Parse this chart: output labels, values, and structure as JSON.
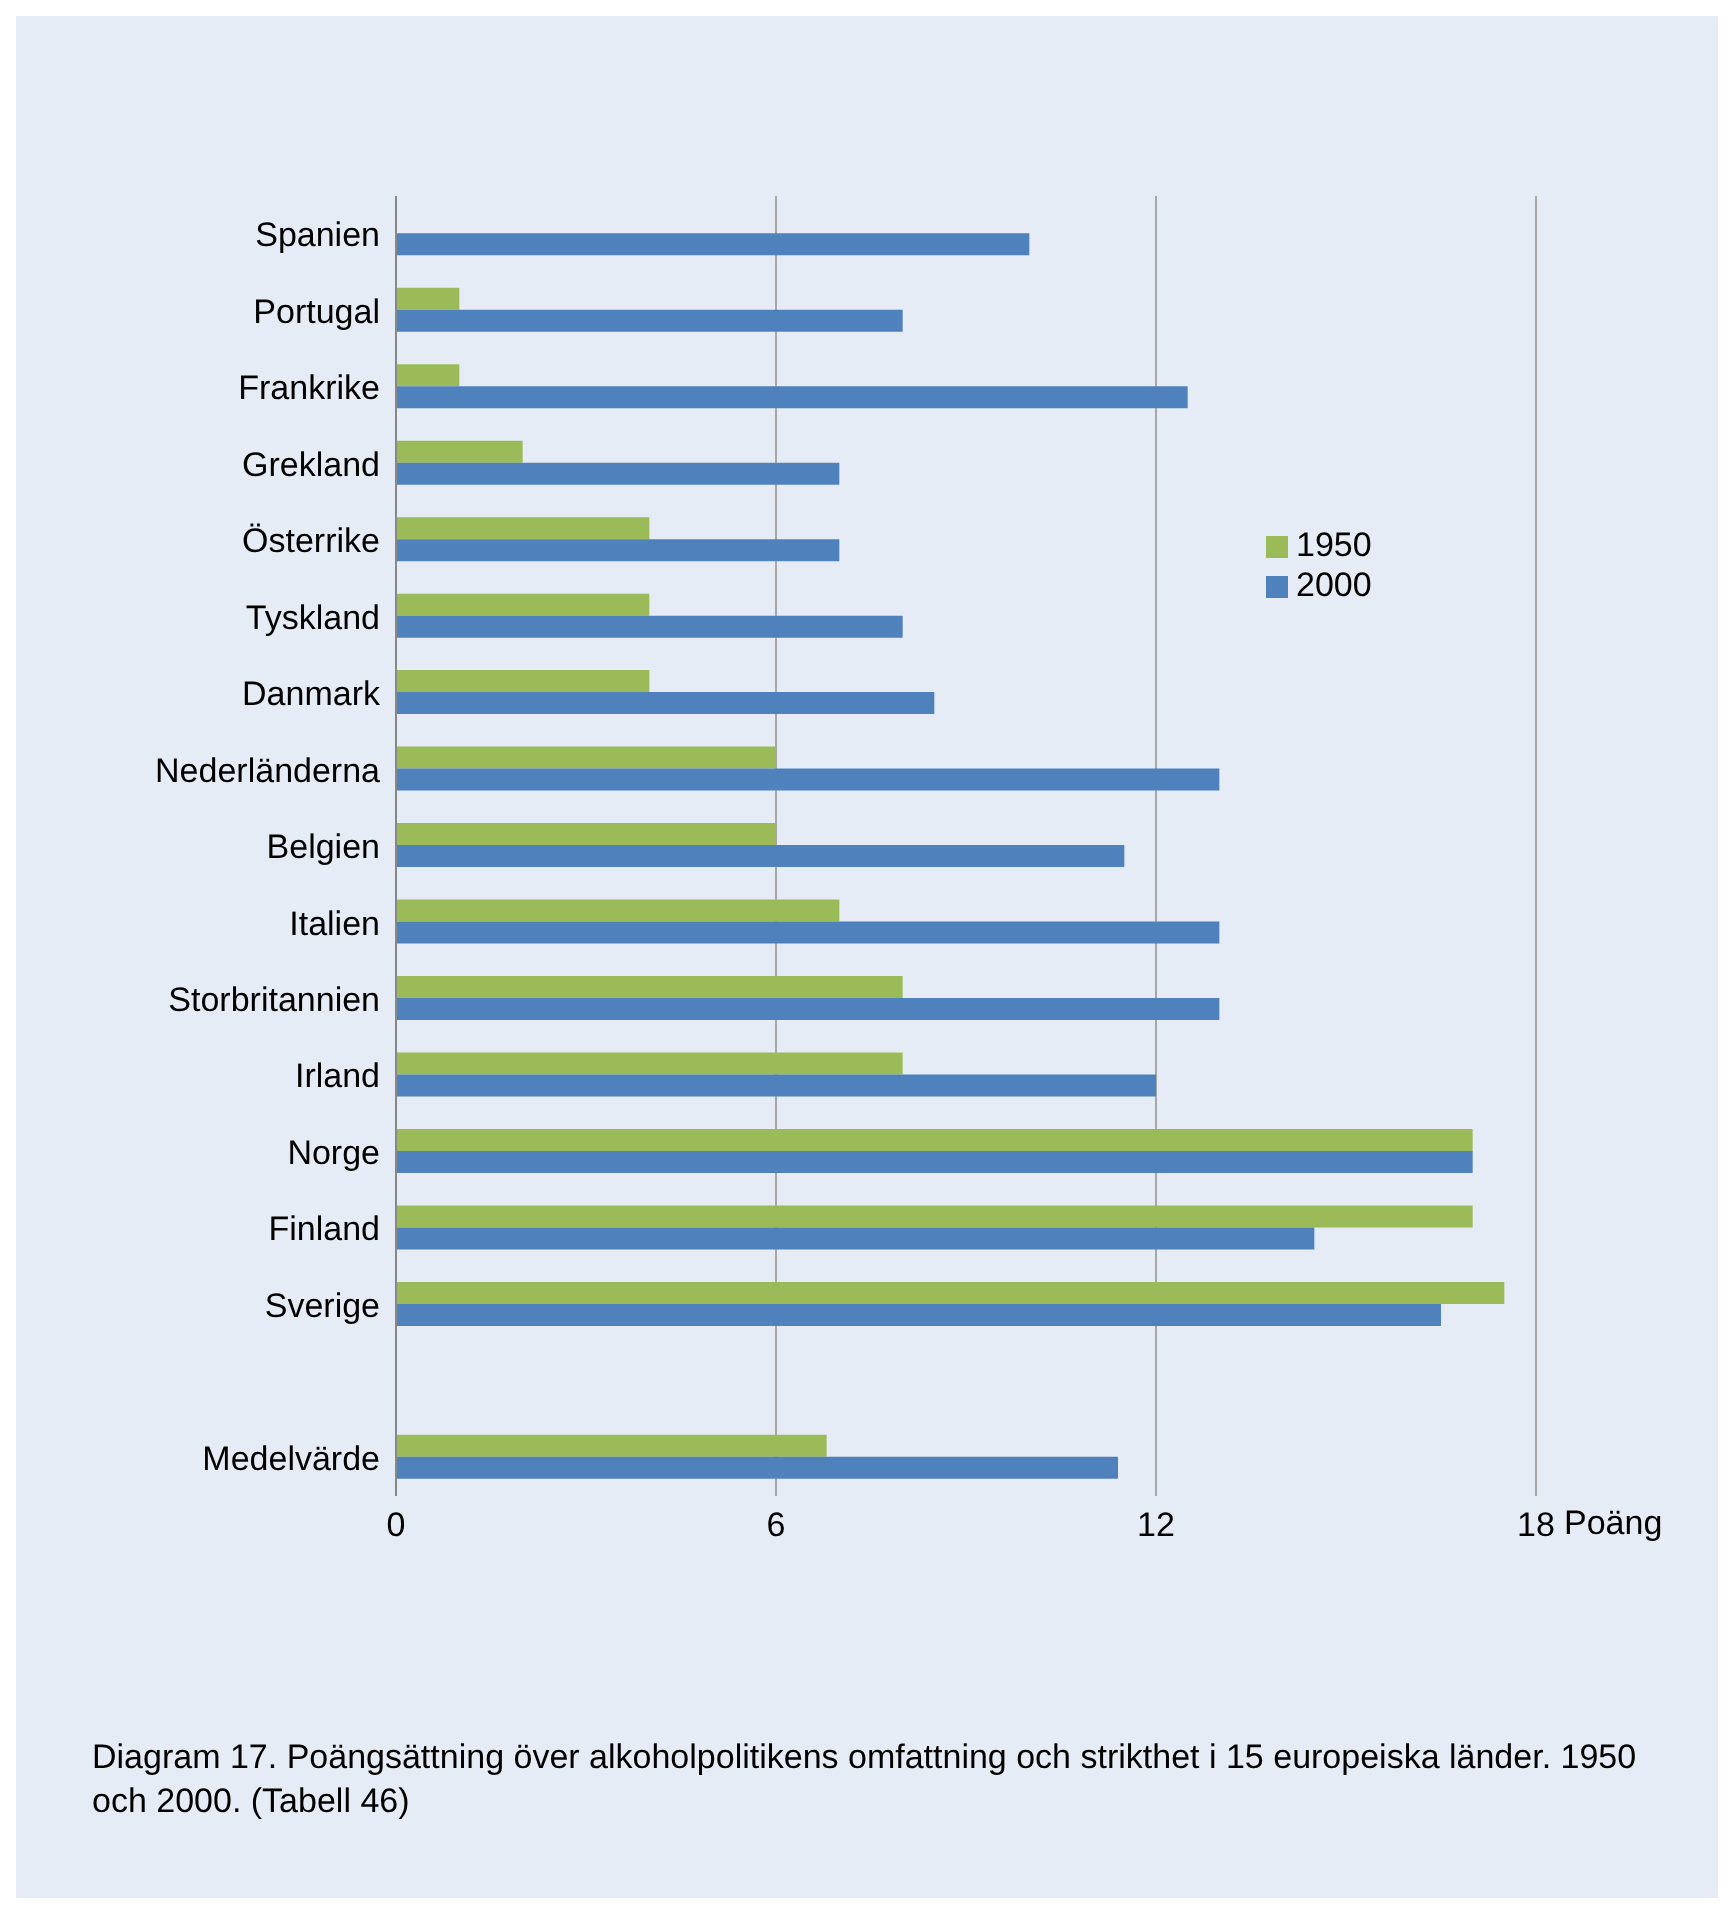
{
  "chart_data": {
    "type": "bar",
    "orientation": "horizontal",
    "categories": [
      "Spanien",
      "Portugal",
      "Frankrike",
      "Grekland",
      "Österrike",
      "Tyskland",
      "Danmark",
      "Nederländerna",
      "Belgien",
      "Italien",
      "Storbritannien",
      "Irland",
      "Norge",
      "Finland",
      "Sverige",
      null,
      "Medelvärde"
    ],
    "series": [
      {
        "name": "1950",
        "color": "#9bbb59",
        "values": [
          null,
          1,
          1,
          2,
          4,
          4,
          4,
          6,
          6,
          7,
          8,
          8,
          17,
          17,
          17.5,
          null,
          6.8
        ]
      },
      {
        "name": "2000",
        "color": "#4f81bd",
        "values": [
          10,
          8,
          12.5,
          7,
          7,
          8,
          8.5,
          13,
          11.5,
          13,
          13,
          12,
          17,
          14.5,
          16.5,
          null,
          11.4
        ]
      }
    ],
    "xlim": [
      0,
      18
    ],
    "xticks": [
      0,
      6,
      12,
      18
    ],
    "xlabel": "Poäng",
    "grid": "x",
    "legend": "right",
    "annotations": [
      "Diagram 17. Poängsättning över alkoholpolitikens omfattning och strikthet i 15 europeiska länder. 1950 och 2000. (Tabell 46)"
    ]
  }
}
